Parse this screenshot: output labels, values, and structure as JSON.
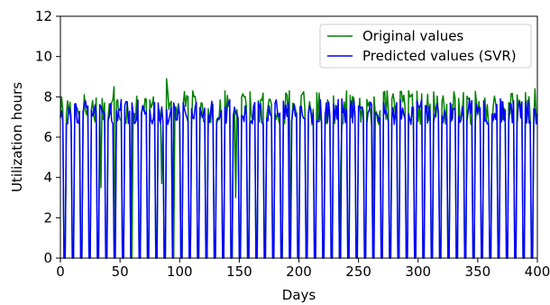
{
  "chart_data": {
    "type": "line",
    "xlabel": "Days",
    "ylabel": "Utilization hours",
    "xlim": [
      0,
      400
    ],
    "ylim": [
      0,
      12
    ],
    "xticks": [
      0,
      50,
      100,
      150,
      200,
      250,
      300,
      350,
      400
    ],
    "yticks": [
      0,
      2,
      4,
      6,
      8,
      10,
      12
    ],
    "grid": false,
    "legend_position": "top-right",
    "weekly_pattern": "5 working days followed by 2 zero-hour days, repeating over 400 days",
    "series": [
      {
        "name": "Original values",
        "color": "#008000",
        "typical_working_day_range": [
          6.0,
          8.3
        ],
        "notable_peaks": [
          [
            45,
            8.5
          ],
          [
            89,
            8.9
          ],
          [
            154,
            8.0
          ],
          [
            192,
            8.3
          ],
          [
            263,
            8.0
          ],
          [
            292,
            8.3
          ],
          [
            398,
            8.4
          ]
        ],
        "notable_dips": [
          [
            34,
            3.5
          ],
          [
            85,
            3.7
          ],
          [
            147,
            3.0
          ],
          [
            172,
            1.6
          ],
          [
            207,
            0.6
          ],
          [
            235,
            4.4
          ]
        ]
      },
      {
        "name": "Predicted values (SVR)",
        "color": "#0000ff",
        "typical_working_day_range": [
          6.2,
          7.9
        ],
        "notable_peaks": [
          [
            60,
            7.7
          ],
          [
            95,
            7.7
          ],
          [
            189,
            7.6
          ],
          [
            236,
            7.9
          ],
          [
            302,
            7.6
          ]
        ],
        "notable_dips": []
      }
    ]
  }
}
